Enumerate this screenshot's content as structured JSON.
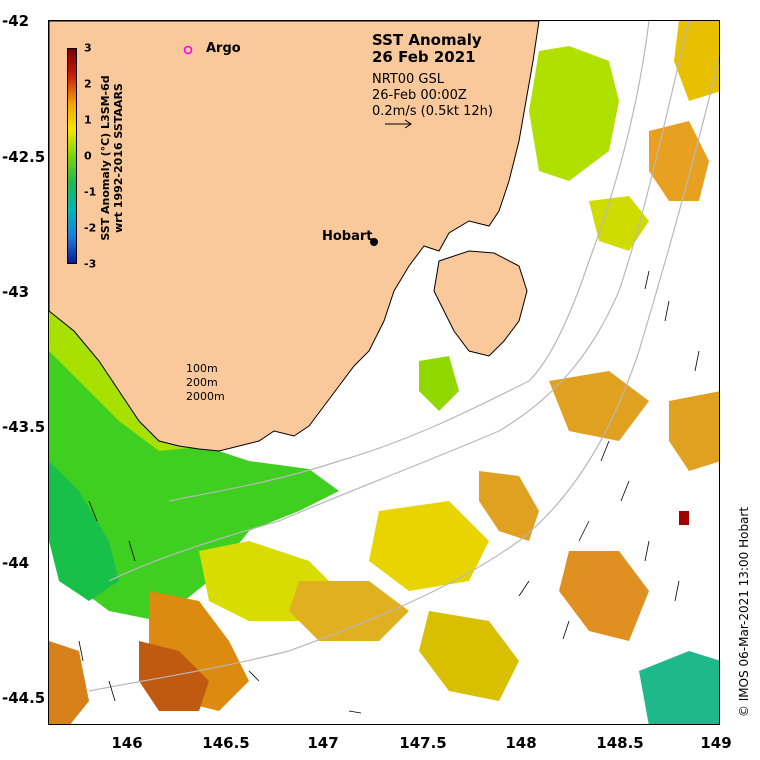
{
  "title": "SST Anomaly",
  "date": "26 Feb 2021",
  "subtitle_lines": [
    "NRT00 GSL",
    "26-Feb 00:00Z",
    "0.2m/s (0.5kt 12h)"
  ],
  "colorbar": {
    "label_line1": "SST Anomaly (°C) L3SM-6d",
    "label_line2": "wrt 1992-2016 SSTAARS",
    "ticks": [
      "3",
      "2",
      "1",
      "0",
      "-1",
      "-2",
      "-3"
    ],
    "colors": [
      "#7a0000",
      "#c81e0a",
      "#f0a000",
      "#f5e600",
      "#7fd600",
      "#1fb84f",
      "#00b8b8",
      "#1a7fd6",
      "#0a1e9a"
    ]
  },
  "axes": {
    "x_ticks": [
      "146",
      "146.5",
      "147",
      "147.5",
      "148",
      "148.5",
      "149"
    ],
    "y_ticks": [
      "-42",
      "-42.5",
      "-43",
      "-43.5",
      "-44",
      "-44.5"
    ]
  },
  "labels": {
    "argo": "Argo",
    "hobart": "Hobart",
    "depth_100": "100m",
    "depth_200": "200m",
    "depth_2000": "2000m"
  },
  "credit": "© IMOS 06-Mar-2021 13:00 Hobart",
  "colors": {
    "land": "#f9c99c",
    "orange_anomaly": "#e08a0a",
    "yellow_anomaly": "#e8d400",
    "green_anomaly": "#6fd400",
    "argo_marker": "#ff00ff"
  }
}
